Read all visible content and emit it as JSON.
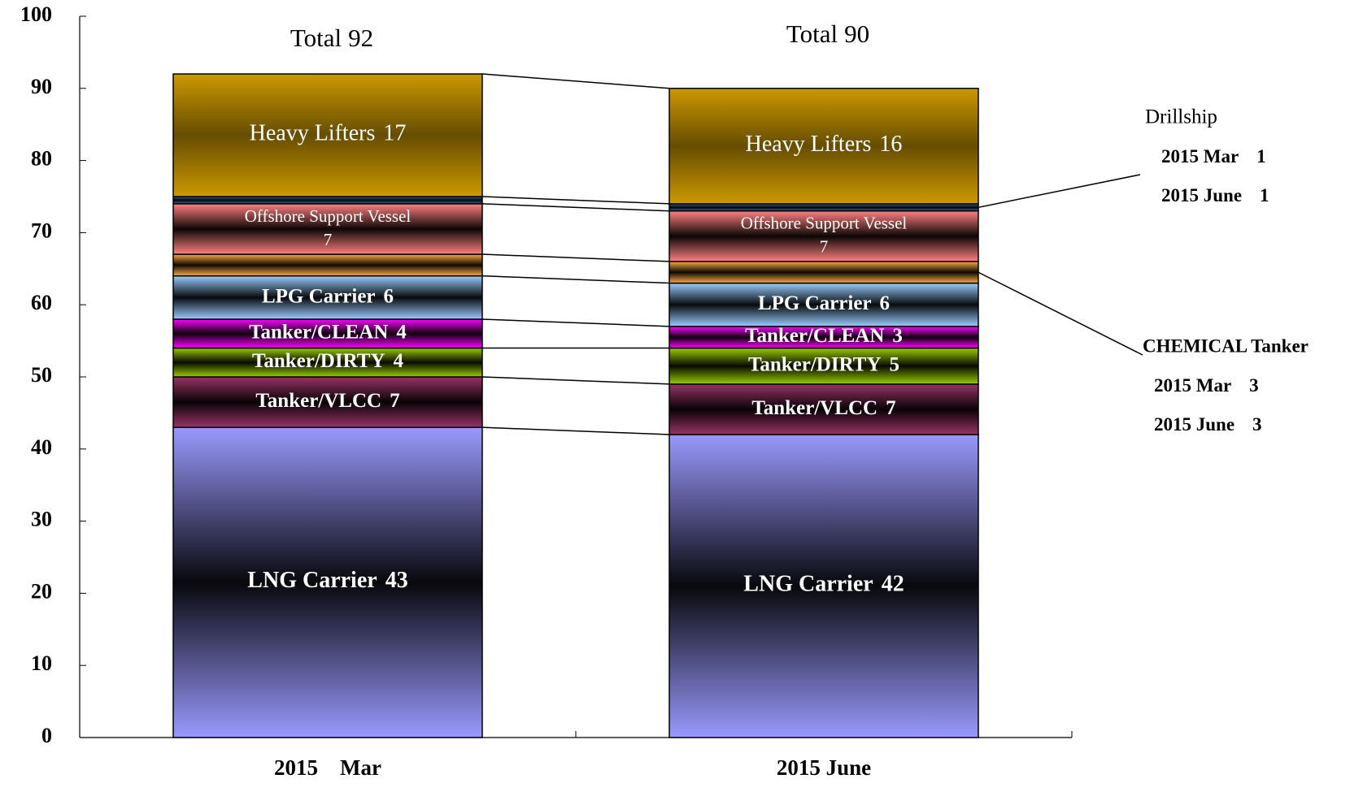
{
  "chart_data": {
    "type": "stacked-bar",
    "categories": [
      "2015　Mar",
      "2015 June"
    ],
    "total_label": "Total",
    "totals": [
      92,
      90
    ],
    "ylim": [
      0,
      100
    ],
    "yticks": [
      0,
      10,
      20,
      30,
      40,
      50,
      60,
      70,
      80,
      90,
      100
    ],
    "grid": false,
    "annotation_labels": [
      "2015 Mar",
      "2015 June"
    ],
    "series": [
      {
        "name": "LNG Carrier",
        "color": "#9999ff",
        "values": [
          43,
          42
        ]
      },
      {
        "name": "Tanker/VLCC",
        "color": "#993366",
        "values": [
          7,
          7
        ]
      },
      {
        "name": "Tanker/DIRTY",
        "color": "#99cc00",
        "values": [
          4,
          5
        ]
      },
      {
        "name": "Tanker/CLEAN",
        "color": "#ff00ff",
        "values": [
          4,
          3
        ]
      },
      {
        "name": "LPG Carrier",
        "color": "#99ccff",
        "values": [
          6,
          6
        ]
      },
      {
        "name": "CHEMICAL Tanker",
        "color": "#ffaa44",
        "values": [
          3,
          3
        ],
        "callout": true
      },
      {
        "name": "Offshore Support Vessel",
        "color": "#ff8080",
        "values": [
          7,
          7
        ],
        "two_line": true
      },
      {
        "name": "Drillship",
        "color": "#336699",
        "values": [
          1,
          1
        ],
        "callout": true
      },
      {
        "name": "Heavy Lifters",
        "color": "#cc9900",
        "values": [
          17,
          16
        ]
      }
    ]
  }
}
